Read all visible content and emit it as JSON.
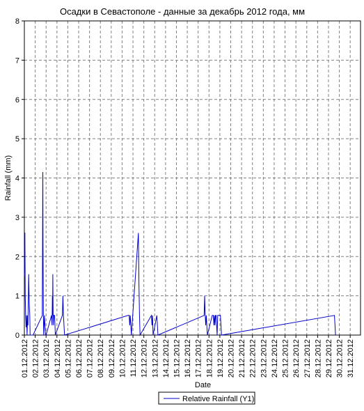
{
  "chart_data": {
    "type": "line",
    "title": "Осадки в Севастополе - данные за декабрь 2012 года, мм",
    "xlabel": "Date",
    "ylabel": "Rainfall (mm)",
    "ylim": [
      0,
      8
    ],
    "yticks": [
      "0",
      "1",
      "2",
      "3",
      "4",
      "5",
      "6",
      "7",
      "8"
    ],
    "xticks": [
      "01.12.2012",
      "02.12.2012",
      "03.12.2012",
      "04.12.2012",
      "05.12.2012",
      "06.12.2012",
      "07.12.2012",
      "08.12.2012",
      "09.12.2012",
      "10.12.2012",
      "11.12.2012",
      "12.12.2012",
      "13.12.2012",
      "14.12.2012",
      "15.12.2012",
      "16.12.2012",
      "17.12.2012",
      "18.12.2012",
      "19.12.2012",
      "20.12.2012",
      "21.12.2012",
      "22.12.2012",
      "23.12.2012",
      "24.12.2012",
      "25.12.2012",
      "26.12.2012",
      "27.12.2012",
      "28.12.2012",
      "29.12.2012",
      "30.12.2012",
      "31.12.2012"
    ],
    "grid": true,
    "legend_position": "bottom",
    "series": [
      {
        "name": "Relative Rainfall (Y1)",
        "color": "#0000cc",
        "x": [
          1.0,
          1.02,
          1.05,
          1.08,
          1.12,
          1.16,
          1.2,
          1.22,
          1.25,
          1.3,
          1.33,
          1.37,
          1.4,
          1.45,
          1.5,
          1.53,
          1.57,
          1.6,
          1.62,
          1.65,
          1.7,
          1.75,
          1.8,
          2.65,
          2.7,
          2.72,
          2.75,
          2.78,
          2.82,
          2.85,
          2.9,
          2.95,
          3.0,
          3.5,
          3.55,
          3.58,
          3.6,
          3.62,
          3.65,
          3.68,
          3.7,
          3.75,
          3.78,
          3.82,
          3.85,
          4.5,
          4.55,
          4.6,
          4.65,
          4.7,
          10.55,
          10.6,
          10.65,
          10.7,
          10.75,
          10.8,
          10.85,
          11.5,
          11.55,
          11.6,
          11.65,
          12.7,
          12.75,
          12.8,
          12.85,
          13.2,
          13.25,
          13.3,
          17.55,
          17.6,
          17.65,
          17.7,
          17.75,
          17.8,
          17.85,
          18.3,
          18.35,
          18.4,
          18.45,
          18.5,
          18.55,
          18.6,
          18.65,
          18.7,
          18.75,
          18.8,
          18.9,
          19.0,
          19.05,
          19.1,
          19.15,
          29.55,
          29.6,
          29.65
        ],
        "y": [
          1.5,
          2.6,
          2.6,
          1.0,
          0.5,
          0.2,
          0.5,
          0.3,
          0.0,
          0.5,
          0.25,
          1.0,
          1.55,
          0.8,
          0.5,
          0.0,
          0.0,
          0.0,
          0.0,
          0.0,
          0.0,
          0.0,
          0.0,
          0.5,
          4.15,
          2.3,
          0.5,
          0.0,
          0.25,
          0.5,
          0.25,
          0.0,
          0.0,
          0.5,
          0.25,
          1.0,
          0.5,
          1.55,
          0.5,
          0.25,
          0.5,
          0.5,
          0.5,
          0.25,
          0.0,
          0.5,
          1.0,
          0.5,
          0.25,
          0.0,
          0.5,
          0.5,
          0.5,
          0.25,
          0.5,
          0.25,
          0.0,
          2.6,
          1.3,
          0.5,
          0.0,
          0.5,
          0.25,
          0.5,
          0.0,
          0.5,
          0.25,
          0.0,
          0.5,
          1.0,
          0.5,
          0.25,
          0.5,
          0.25,
          0.0,
          0.5,
          0.5,
          0.5,
          0.25,
          0.5,
          0.25,
          0.5,
          0.5,
          0.25,
          0.0,
          0.5,
          0.5,
          0.5,
          0.5,
          0.25,
          0.0,
          0.5,
          0.25,
          0.0
        ]
      }
    ]
  }
}
